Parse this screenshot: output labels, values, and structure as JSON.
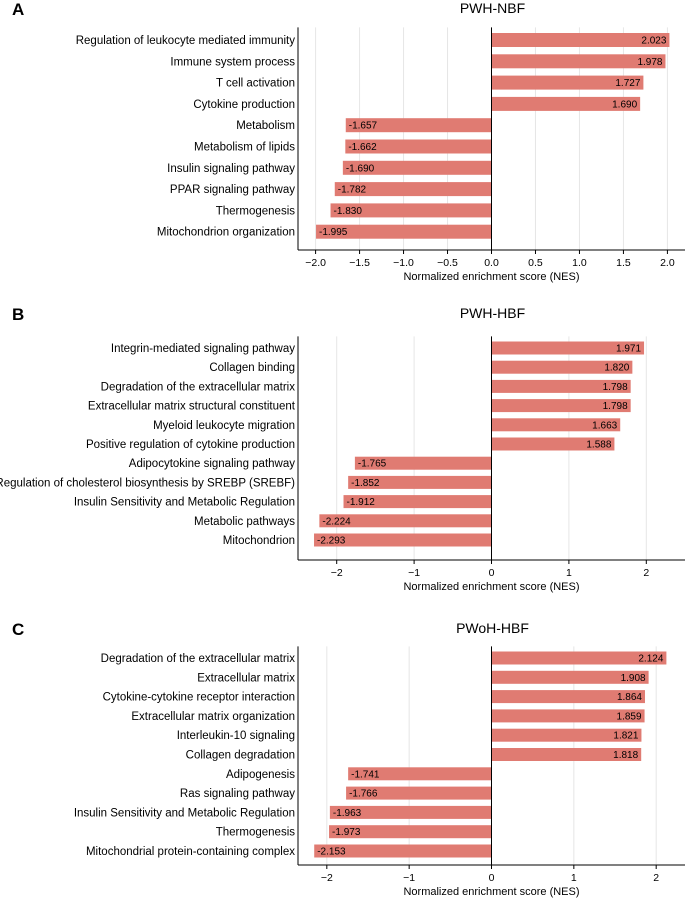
{
  "chart_data": [
    {
      "type": "bar",
      "orientation": "horizontal",
      "panel": "A",
      "title": "PWH-NBF",
      "xlabel": "Normalized enrichment score (NES)",
      "ylabel": "",
      "xlim": [
        -2.2,
        2.2
      ],
      "xticks": [
        -2.0,
        -1.5,
        -1.0,
        -0.5,
        0.0,
        0.5,
        1.0,
        1.5,
        2.0
      ],
      "xtick_labels": [
        "−2.0",
        "−1.5",
        "−1.0",
        "−0.5",
        "0.0",
        "0.5",
        "1.0",
        "1.5",
        "2.0"
      ],
      "grid": "vertical",
      "bar_color": "#e07b72",
      "categories": [
        "Regulation of leukocyte mediated immunity",
        "Immune system process",
        "T cell activation",
        "Cytokine production",
        "Metabolism",
        "Metabolism of lipids",
        "Insulin signaling pathway",
        "PPAR signaling pathway",
        "Thermogenesis",
        "Mitochondrion organization"
      ],
      "values": [
        2.023,
        1.978,
        1.727,
        1.69,
        -1.657,
        -1.662,
        -1.69,
        -1.782,
        -1.83,
        -1.995
      ],
      "value_labels": [
        "2.023",
        "1.978",
        "1.727",
        "1.690",
        "-1.657",
        "-1.662",
        "-1.690",
        "-1.782",
        "-1.830",
        "-1.995"
      ]
    },
    {
      "type": "bar",
      "orientation": "horizontal",
      "panel": "B",
      "title": "PWH-HBF",
      "xlabel": "Normalized enrichment score (NES)",
      "ylabel": "",
      "xlim": [
        -2.5,
        2.5
      ],
      "xticks": [
        -2,
        -1,
        0,
        1,
        2
      ],
      "xtick_labels": [
        "−2",
        "−1",
        "0",
        "1",
        "2"
      ],
      "grid": "vertical",
      "bar_color": "#e07b72",
      "categories": [
        "Integrin-mediated signaling pathway",
        "Collagen binding",
        "Degradation of the extracellular matrix",
        "Extracellular matrix structural constituent",
        "Myeloid leukocyte migration",
        "Positive regulation of cytokine production",
        "Adipocytokine signaling pathway",
        "Regulation of cholesterol biosynthesis by SREBP (SREBF)",
        "Insulin Sensitivity and Metabolic Regulation",
        "Metabolic pathways",
        "Mitochondrion"
      ],
      "values": [
        1.971,
        1.82,
        1.798,
        1.798,
        1.663,
        1.588,
        -1.765,
        -1.852,
        -1.912,
        -2.224,
        -2.293
      ],
      "value_labels": [
        "1.971",
        "1.820",
        "1.798",
        "1.798",
        "1.663",
        "1.588",
        "-1.765",
        "-1.852",
        "-1.912",
        "-2.224",
        "-2.293"
      ]
    },
    {
      "type": "bar",
      "orientation": "horizontal",
      "panel": "C",
      "title": "PWoH-HBF",
      "xlabel": "Normalized enrichment score (NES)",
      "ylabel": "",
      "xlim": [
        -2.35,
        2.35
      ],
      "xticks": [
        -2,
        -1,
        0,
        1,
        2
      ],
      "xtick_labels": [
        "−2",
        "−1",
        "0",
        "1",
        "2"
      ],
      "grid": "vertical",
      "bar_color": "#e07b72",
      "categories": [
        "Degradation of the extracellular matrix",
        "Extracellular matrix",
        "Cytokine-cytokine receptor interaction",
        "Extracellular matrix organization",
        "Interleukin-10 signaling",
        "Collagen degradation",
        "Adipogenesis",
        "Ras signaling pathway",
        "Insulin Sensitivity and Metabolic Regulation",
        "Thermogenesis",
        "Mitochondrial protein-containing complex"
      ],
      "values": [
        2.124,
        1.908,
        1.864,
        1.859,
        1.821,
        1.818,
        -1.741,
        -1.766,
        -1.963,
        -1.973,
        -2.153
      ],
      "value_labels": [
        "2.124",
        "1.908",
        "1.864",
        "1.859",
        "1.821",
        "1.818",
        "-1.741",
        "-1.766",
        "-1.963",
        "-1.973",
        "-2.153"
      ]
    }
  ]
}
